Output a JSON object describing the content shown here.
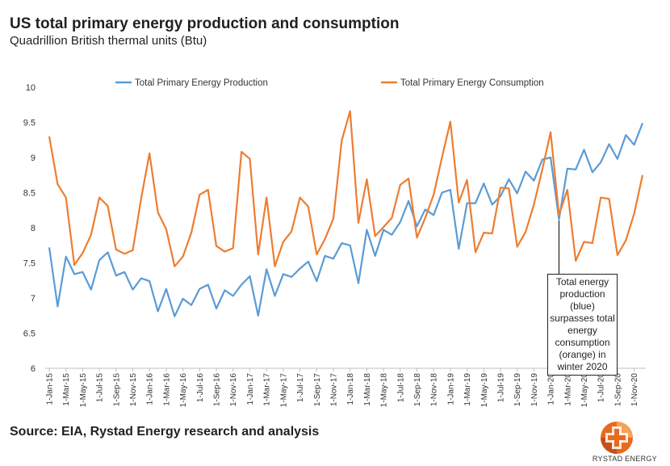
{
  "title": "US total primary energy production and consumption",
  "subtitle": "Quadrillion British thermal units (Btu)",
  "source": "Source: EIA, Rystad Energy research and analysis",
  "brand": "RYSTAD ENERGY",
  "annotation": "Total energy production (blue) surpasses total energy consumption (orange) in winter 2020",
  "chart_data": {
    "type": "line",
    "title": "US total primary energy production and consumption",
    "ylabel": "Quadrillion British thermal units (Btu)",
    "xlabel": "",
    "ylim": [
      6,
      10
    ],
    "yticks": [
      "6",
      "6.5",
      "7",
      "7.5",
      "8",
      "8.5",
      "9",
      "9.5",
      "10"
    ],
    "grid": false,
    "legend": "top",
    "x_tick_labels": [
      "1-Jan-15",
      "1-Mar-15",
      "1-May-15",
      "1-Jul-15",
      "1-Sep-15",
      "1-Nov-15",
      "1-Jan-16",
      "1-Mar-16",
      "1-May-16",
      "1-Jul-16",
      "1-Sep-16",
      "1-Nov-16",
      "1-Jan-17",
      "1-Mar-17",
      "1-May-17",
      "1-Jul-17",
      "1-Sep-17",
      "1-Nov-17",
      "1-Jan-18",
      "1-Mar-18",
      "1-May-18",
      "1-Jul-18",
      "1-Sep-18",
      "1-Nov-18",
      "1-Jan-19",
      "1-Mar-19",
      "1-May-19",
      "1-Jul-19",
      "1-Sep-19",
      "1-Nov-19",
      "1-Jan-20",
      "1-Mar-20",
      "1-May-20",
      "1-Jul-20",
      "1-Sep-20",
      "1-Nov-20"
    ],
    "series": [
      {
        "name": "Total Primary Energy Production",
        "color": "#5b9bd5",
        "values": [
          7.72,
          6.88,
          7.59,
          7.34,
          7.37,
          7.12,
          7.54,
          7.65,
          7.32,
          7.37,
          7.12,
          7.28,
          7.24,
          6.81,
          7.13,
          6.74,
          6.99,
          6.9,
          7.13,
          7.19,
          6.85,
          7.11,
          7.03,
          7.19,
          7.31,
          6.75,
          7.41,
          7.03,
          7.34,
          7.3,
          7.42,
          7.52,
          7.24,
          7.6,
          7.56,
          7.78,
          7.75,
          7.21,
          7.97,
          7.6,
          7.97,
          7.9,
          8.08,
          8.38,
          8.02,
          8.26,
          8.18,
          8.5,
          8.54,
          7.7,
          8.35,
          8.35,
          8.63,
          8.33,
          8.45,
          8.69,
          8.49,
          8.8,
          8.67,
          8.97,
          9.0,
          8.12,
          8.84,
          8.83,
          9.11,
          8.79,
          8.93,
          9.19,
          8.98,
          9.32,
          9.18,
          9.49
        ]
      },
      {
        "name": "Total Primary Energy Consumption",
        "color": "#ed7d31",
        "values": [
          9.3,
          8.62,
          8.43,
          7.47,
          7.64,
          7.9,
          8.43,
          8.31,
          7.69,
          7.63,
          7.68,
          8.42,
          9.06,
          8.22,
          7.98,
          7.45,
          7.59,
          7.93,
          8.47,
          8.54,
          7.74,
          7.66,
          7.71,
          9.08,
          8.98,
          7.62,
          8.43,
          7.45,
          7.8,
          7.95,
          8.43,
          8.3,
          7.62,
          7.84,
          8.13,
          9.24,
          9.66,
          8.07,
          8.69,
          7.88,
          8.01,
          8.14,
          8.61,
          8.7,
          7.86,
          8.14,
          8.47,
          9.0,
          9.51,
          8.36,
          8.68,
          7.65,
          7.93,
          7.92,
          8.57,
          8.56,
          7.73,
          7.94,
          8.33,
          8.83,
          9.36,
          8.18,
          8.54,
          7.53,
          7.8,
          7.78,
          8.43,
          8.41,
          7.61,
          7.82,
          8.2,
          8.75
        ]
      }
    ],
    "annotation_point": {
      "date": "1-Feb-20",
      "value": 8.15
    }
  }
}
